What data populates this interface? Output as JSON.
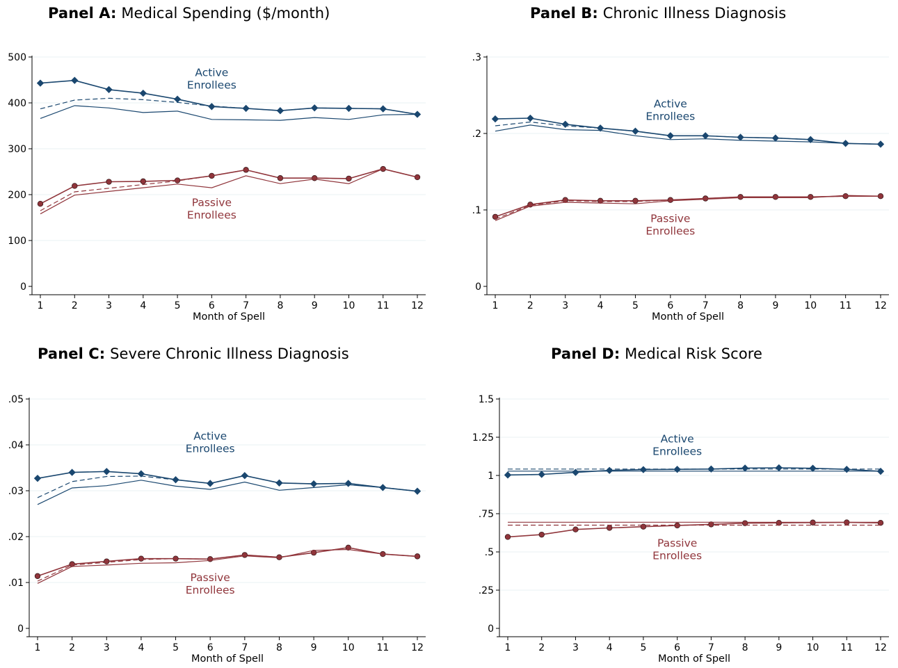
{
  "panels": [
    {
      "id": "A",
      "bold": "Panel A:",
      "title": "Medical Spending ($/month)"
    },
    {
      "id": "B",
      "bold": "Panel B:",
      "title": "Chronic Illness Diagnosis"
    },
    {
      "id": "C",
      "bold": "Panel C:",
      "title": "Severe Chronic Illness Diagnosis"
    },
    {
      "id": "D",
      "bold": "Panel D:",
      "title": "Medical Risk Score"
    }
  ],
  "colors": {
    "active": "#1a476f",
    "passive": "#90353b",
    "grid": "#eaf2f3",
    "axis": "#000000"
  },
  "chart_data": [
    {
      "type": "line",
      "title": "Medical Spending ($/month)",
      "xlabel": "Month of Spell",
      "ylabel": "",
      "x": [
        1,
        2,
        3,
        4,
        5,
        6,
        7,
        8,
        9,
        10,
        11,
        12
      ],
      "ylim": [
        0,
        500
      ],
      "yticks": [
        0,
        100,
        200,
        300,
        400,
        500
      ],
      "yticklabels": [
        "0",
        "100",
        "200",
        "300",
        "400",
        "500"
      ],
      "series": [
        {
          "group": "active",
          "style": "marker",
          "values": [
            443,
            449,
            429,
            421,
            408,
            392,
            388,
            383,
            389,
            388,
            387,
            375
          ]
        },
        {
          "group": "active",
          "style": "dashed",
          "values": [
            387,
            406,
            410,
            407,
            401,
            393,
            388,
            383,
            389,
            388,
            387,
            375
          ]
        },
        {
          "group": "active",
          "style": "thin",
          "values": [
            366,
            394,
            389,
            379,
            382,
            364,
            363,
            362,
            368,
            364,
            374,
            375
          ]
        },
        {
          "group": "passive",
          "style": "marker",
          "values": [
            180,
            219,
            228,
            229,
            231,
            241,
            254,
            236,
            236,
            235,
            256,
            238
          ]
        },
        {
          "group": "passive",
          "style": "dashed",
          "values": [
            165,
            206,
            214,
            222,
            230,
            241,
            254,
            236,
            236,
            235,
            256,
            238
          ]
        },
        {
          "group": "passive",
          "style": "thin",
          "values": [
            158,
            199,
            207,
            215,
            223,
            215,
            241,
            224,
            234,
            224,
            256,
            238
          ]
        }
      ],
      "annotations": [
        {
          "group": "active",
          "lines": [
            "Active",
            "Enrollees"
          ],
          "x": 6,
          "y": 458
        },
        {
          "group": "passive",
          "lines": [
            "Passive",
            "Enrollees"
          ],
          "x": 6,
          "y": 175
        }
      ]
    },
    {
      "type": "line",
      "title": "Chronic Illness Diagnosis",
      "xlabel": "Month of Spell",
      "ylabel": "",
      "x": [
        1,
        2,
        3,
        4,
        5,
        6,
        7,
        8,
        9,
        10,
        11,
        12
      ],
      "ylim": [
        0,
        0.3
      ],
      "yticks": [
        0,
        0.1,
        0.2,
        0.3
      ],
      "yticklabels": [
        "0",
        ".1",
        ".2",
        ".3"
      ],
      "series": [
        {
          "group": "active",
          "style": "marker",
          "values": [
            0.219,
            0.22,
            0.212,
            0.207,
            0.203,
            0.197,
            0.197,
            0.195,
            0.194,
            0.192,
            0.187,
            0.186
          ]
        },
        {
          "group": "active",
          "style": "dashed",
          "values": [
            0.21,
            0.215,
            0.21,
            0.207,
            0.203,
            0.197,
            0.197,
            0.195,
            0.194,
            0.192,
            0.187,
            0.186
          ]
        },
        {
          "group": "active",
          "style": "thin",
          "values": [
            0.203,
            0.211,
            0.205,
            0.204,
            0.197,
            0.192,
            0.193,
            0.191,
            0.19,
            0.189,
            0.187,
            0.186
          ]
        },
        {
          "group": "passive",
          "style": "marker",
          "values": [
            0.091,
            0.107,
            0.113,
            0.112,
            0.112,
            0.113,
            0.115,
            0.117,
            0.117,
            0.117,
            0.118,
            0.118
          ]
        },
        {
          "group": "passive",
          "style": "dashed",
          "values": [
            0.088,
            0.106,
            0.112,
            0.111,
            0.111,
            0.113,
            0.115,
            0.117,
            0.117,
            0.117,
            0.118,
            0.118
          ]
        },
        {
          "group": "passive",
          "style": "thin",
          "values": [
            0.086,
            0.105,
            0.11,
            0.109,
            0.108,
            0.112,
            0.114,
            0.116,
            0.116,
            0.116,
            0.119,
            0.118
          ]
        }
      ],
      "annotations": [
        {
          "group": "active",
          "lines": [
            "Active",
            "Enrollees"
          ],
          "x": 6,
          "y": 0.234
        },
        {
          "group": "passive",
          "lines": [
            "Passive",
            "Enrollees"
          ],
          "x": 6,
          "y": 0.084
        }
      ]
    },
    {
      "type": "line",
      "title": "Severe Chronic Illness Diagnosis",
      "xlabel": "Month of Spell",
      "ylabel": "",
      "x": [
        1,
        2,
        3,
        4,
        5,
        6,
        7,
        8,
        9,
        10,
        11,
        12
      ],
      "ylim": [
        0,
        0.05
      ],
      "yticks": [
        0,
        0.01,
        0.02,
        0.03,
        0.04,
        0.05
      ],
      "yticklabels": [
        "0",
        ".01",
        ".02",
        ".03",
        ".04",
        ".05"
      ],
      "series": [
        {
          "group": "active",
          "style": "marker",
          "values": [
            0.0327,
            0.034,
            0.0342,
            0.0337,
            0.0324,
            0.0316,
            0.0333,
            0.0317,
            0.0315,
            0.0316,
            0.0307,
            0.0299
          ]
        },
        {
          "group": "active",
          "style": "dashed",
          "values": [
            0.0285,
            0.032,
            0.0331,
            0.0332,
            0.0324,
            0.0316,
            0.0333,
            0.0317,
            0.0315,
            0.0316,
            0.0307,
            0.0299
          ]
        },
        {
          "group": "active",
          "style": "thin",
          "values": [
            0.027,
            0.0306,
            0.0311,
            0.0323,
            0.031,
            0.0303,
            0.0319,
            0.0301,
            0.0307,
            0.0313,
            0.0307,
            0.0299
          ]
        },
        {
          "group": "passive",
          "style": "marker",
          "values": [
            0.0114,
            0.014,
            0.0146,
            0.0152,
            0.0152,
            0.0151,
            0.016,
            0.0155,
            0.0165,
            0.0176,
            0.0162,
            0.0157
          ]
        },
        {
          "group": "passive",
          "style": "dashed",
          "values": [
            0.0103,
            0.0138,
            0.0144,
            0.015,
            0.0152,
            0.0151,
            0.016,
            0.0155,
            0.0165,
            0.0176,
            0.0162,
            0.0157
          ]
        },
        {
          "group": "passive",
          "style": "thin",
          "values": [
            0.0098,
            0.0135,
            0.0138,
            0.0142,
            0.0143,
            0.0148,
            0.0158,
            0.0154,
            0.017,
            0.0172,
            0.0162,
            0.0157
          ]
        }
      ],
      "annotations": [
        {
          "group": "active",
          "lines": [
            "Active",
            "Enrollees"
          ],
          "x": 6,
          "y": 0.0411
        },
        {
          "group": "passive",
          "lines": [
            "Passive",
            "Enrollees"
          ],
          "x": 6,
          "y": 0.0103
        }
      ]
    },
    {
      "type": "line",
      "title": "Medical Risk Score",
      "xlabel": "Month of Spell",
      "ylabel": "",
      "x": [
        1,
        2,
        3,
        4,
        5,
        6,
        7,
        8,
        9,
        10,
        11,
        12
      ],
      "ylim": [
        0,
        1.5
      ],
      "yticks": [
        0,
        0.25,
        0.5,
        0.75,
        1,
        1.25,
        1.5
      ],
      "yticklabels": [
        "0",
        ".25",
        ".5",
        ".75",
        "1",
        "1.25",
        "1.5"
      ],
      "series": [
        {
          "group": "active",
          "style": "marker",
          "values": [
            1.003,
            1.007,
            1.02,
            1.033,
            1.038,
            1.04,
            1.042,
            1.048,
            1.05,
            1.047,
            1.04,
            1.027
          ]
        },
        {
          "group": "active",
          "style": "dashed",
          "values": [
            1.042,
            1.042,
            1.042,
            1.042,
            1.042,
            1.042,
            1.042,
            1.042,
            1.042,
            1.042,
            1.042,
            1.042
          ]
        },
        {
          "group": "active",
          "style": "thin",
          "values": [
            1.028,
            1.028,
            1.028,
            1.028,
            1.028,
            1.028,
            1.028,
            1.028,
            1.028,
            1.028,
            1.028,
            1.028
          ]
        },
        {
          "group": "passive",
          "style": "marker",
          "values": [
            0.598,
            0.613,
            0.647,
            0.657,
            0.665,
            0.673,
            0.68,
            0.688,
            0.69,
            0.692,
            0.693,
            0.69
          ]
        },
        {
          "group": "passive",
          "style": "dashed",
          "values": [
            0.675,
            0.675,
            0.675,
            0.675,
            0.675,
            0.675,
            0.675,
            0.675,
            0.675,
            0.675,
            0.675,
            0.675
          ]
        },
        {
          "group": "passive",
          "style": "thin",
          "values": [
            0.694,
            0.694,
            0.694,
            0.694,
            0.694,
            0.694,
            0.694,
            0.694,
            0.694,
            0.694,
            0.694,
            0.694
          ]
        }
      ],
      "annotations": [
        {
          "group": "active",
          "lines": [
            "Active",
            "Enrollees"
          ],
          "x": 6,
          "y": 1.215
        },
        {
          "group": "passive",
          "lines": [
            "Passive",
            "Enrollees"
          ],
          "x": 6,
          "y": 0.535
        }
      ]
    }
  ]
}
